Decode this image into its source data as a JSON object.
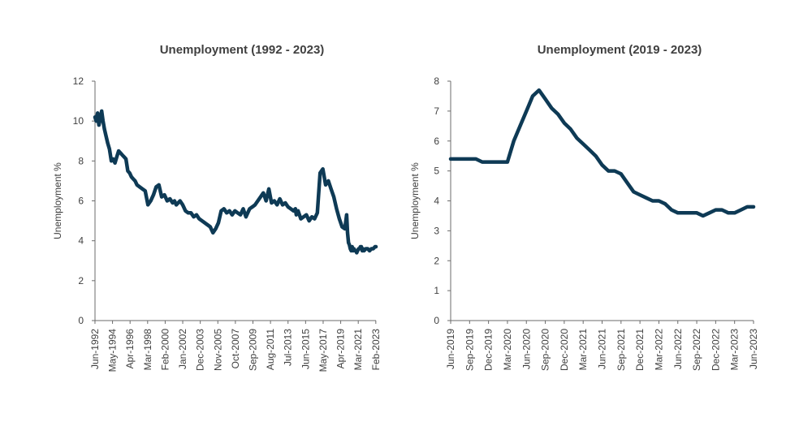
{
  "chart_data": [
    {
      "type": "line",
      "title": "Unemployment (1992 - 2023)",
      "ylabel": "Unemployment %",
      "xlabel": "",
      "ylim": [
        0,
        12
      ],
      "yticks": [
        0,
        2,
        4,
        6,
        8,
        10,
        12
      ],
      "xticks": [
        "Jun-1992",
        "May-1994",
        "Apr-1996",
        "Mar-1998",
        "Feb-2000",
        "Jan-2002",
        "Dec-2003",
        "Nov-2005",
        "Oct-2007",
        "Sep-2009",
        "Aug-2011",
        "Jul-2013",
        "Jun-2015",
        "May-2017",
        "Apr-2019",
        "Mar-2021",
        "Feb-2023"
      ],
      "xlim": [
        1992.42,
        2023.1
      ],
      "grid": false,
      "line_color": "#0e3a55",
      "series": [
        {
          "x": [
            1992.42,
            1992.55,
            1992.7,
            1992.85,
            1993.0,
            1993.15,
            1993.3,
            1993.45,
            1993.6,
            1993.8,
            1994.0,
            1994.2,
            1994.4,
            1994.6,
            1994.8,
            1995.0,
            1995.2,
            1995.4,
            1995.6,
            1995.8,
            1996.0,
            1996.2,
            1996.4,
            1996.6,
            1996.8,
            1997.0,
            1997.3,
            1997.6,
            1997.9,
            1998.2,
            1998.5,
            1998.8,
            1999.1,
            1999.4,
            1999.7,
            2000.0,
            2000.3,
            2000.6,
            2000.9,
            2001.1,
            2001.3,
            2001.5,
            2001.7,
            2002.0,
            2002.3,
            2002.6,
            2002.9,
            2003.2,
            2003.5,
            2003.8,
            2004.1,
            2004.4,
            2004.7,
            2005.0,
            2005.3,
            2005.6,
            2005.9,
            2006.2,
            2006.5,
            2006.8,
            2007.1,
            2007.4,
            2007.7,
            2008.0,
            2008.3,
            2008.6,
            2008.9,
            2009.1,
            2009.3,
            2009.6,
            2009.9,
            2010.2,
            2010.5,
            2010.8,
            2011.1,
            2011.4,
            2011.7,
            2012.0,
            2012.3,
            2012.6,
            2012.9,
            2013.2,
            2013.5,
            2013.8,
            2014.1,
            2014.3,
            2014.4,
            2014.6,
            2014.9,
            2015.2,
            2015.5,
            2015.8,
            2016.1,
            2016.4,
            2016.7,
            2017.0,
            2017.3,
            2017.6,
            2017.9,
            2018.2,
            2018.5,
            2018.8,
            2019.1,
            2019.4,
            2019.7,
            2019.9,
            2020.0,
            2020.1,
            2020.2,
            2020.3,
            2020.4,
            2020.5,
            2020.6,
            2020.7,
            2020.8,
            2020.9,
            2021.0,
            2021.1,
            2021.2,
            2021.3,
            2021.4,
            2021.5,
            2021.6,
            2021.7,
            2021.8,
            2022.0,
            2022.2,
            2022.4,
            2022.6,
            2022.8,
            2023.0,
            2023.1
          ],
          "y": [
            10.2,
            10.0,
            10.4,
            9.8,
            10.1,
            10.5,
            10.0,
            9.6,
            9.3,
            8.9,
            8.6,
            8.0,
            8.1,
            7.9,
            8.2,
            8.5,
            8.4,
            8.3,
            8.2,
            8.1,
            7.5,
            7.4,
            7.2,
            7.1,
            7.0,
            6.8,
            6.7,
            6.6,
            6.5,
            5.8,
            6.0,
            6.3,
            6.7,
            6.8,
            6.2,
            6.3,
            6.0,
            6.1,
            5.9,
            6.0,
            5.8,
            5.9,
            6.0,
            5.8,
            5.5,
            5.4,
            5.4,
            5.2,
            5.3,
            5.1,
            5.0,
            4.9,
            4.8,
            4.7,
            4.4,
            4.6,
            4.9,
            5.5,
            5.6,
            5.4,
            5.5,
            5.3,
            5.5,
            5.4,
            5.3,
            5.6,
            5.2,
            5.4,
            5.6,
            5.7,
            5.8,
            6.0,
            6.2,
            6.4,
            6.0,
            6.6,
            5.9,
            6.0,
            5.8,
            6.1,
            5.8,
            5.9,
            5.7,
            5.6,
            5.5,
            5.6,
            5.3,
            5.5,
            5.1,
            5.2,
            5.3,
            5.0,
            5.2,
            5.1,
            5.4,
            7.4,
            7.6,
            6.8,
            7.0,
            6.6,
            6.2,
            5.6,
            5.1,
            4.7,
            4.6,
            5.3,
            4.4,
            3.9,
            3.8,
            3.6,
            3.5,
            3.7,
            3.5,
            3.6,
            3.5,
            3.5,
            3.4,
            3.5,
            3.6,
            3.6,
            3.7,
            3.7,
            3.5,
            3.6,
            3.5,
            3.6,
            3.6,
            3.5,
            3.6,
            3.6,
            3.7,
            3.7
          ],
          "label_note": ""
        }
      ]
    },
    {
      "type": "line",
      "title": "Unemployment (2019 - 2023)",
      "ylabel": "Unemployment %",
      "xlabel": "",
      "ylim": [
        0,
        8
      ],
      "yticks": [
        0,
        1,
        2,
        3,
        4,
        5,
        6,
        7,
        8
      ],
      "xticks": [
        "Jun-2019",
        "Sep-2019",
        "Dec-2019",
        "Mar-2020",
        "Jun-2020",
        "Sep-2020",
        "Dec-2020",
        "Mar-2021",
        "Jun-2021",
        "Sep-2021",
        "Dec-2021",
        "Mar-2022",
        "Jun-2022",
        "Sep-2022",
        "Dec-2022",
        "Mar-2023",
        "Jun-2023"
      ],
      "grid": false,
      "line_color": "#0e3a55",
      "series": [
        {
          "x": [
            "Jun-2019",
            "Jul-2019",
            "Aug-2019",
            "Sep-2019",
            "Oct-2019",
            "Nov-2019",
            "Dec-2019",
            "Jan-2020",
            "Feb-2020",
            "Mar-2020",
            "Apr-2020",
            "May-2020",
            "Jun-2020",
            "Jul-2020",
            "Aug-2020",
            "Sep-2020",
            "Oct-2020",
            "Nov-2020",
            "Dec-2020",
            "Jan-2021",
            "Feb-2021",
            "Mar-2021",
            "Apr-2021",
            "May-2021",
            "Jun-2021",
            "Jul-2021",
            "Aug-2021",
            "Sep-2021",
            "Oct-2021",
            "Nov-2021",
            "Dec-2021",
            "Jan-2022",
            "Feb-2022",
            "Mar-2022",
            "Apr-2022",
            "May-2022",
            "Jun-2022",
            "Jul-2022",
            "Aug-2022",
            "Sep-2022",
            "Oct-2022",
            "Nov-2022",
            "Dec-2022",
            "Jan-2023",
            "Feb-2023",
            "Mar-2023",
            "Apr-2023",
            "May-2023",
            "Jun-2023"
          ],
          "y": [
            5.4,
            5.4,
            5.4,
            5.4,
            5.4,
            5.3,
            5.3,
            5.3,
            5.3,
            5.3,
            6.0,
            6.5,
            7.0,
            7.5,
            7.7,
            7.4,
            7.1,
            6.9,
            6.6,
            6.4,
            6.1,
            5.9,
            5.7,
            5.5,
            5.2,
            5.0,
            5.0,
            4.9,
            4.6,
            4.3,
            4.2,
            4.1,
            4.0,
            4.0,
            3.9,
            3.7,
            3.6,
            3.6,
            3.6,
            3.6,
            3.5,
            3.6,
            3.7,
            3.7,
            3.6,
            3.6,
            3.7,
            3.8,
            3.8
          ],
          "label_note": ""
        }
      ]
    }
  ]
}
